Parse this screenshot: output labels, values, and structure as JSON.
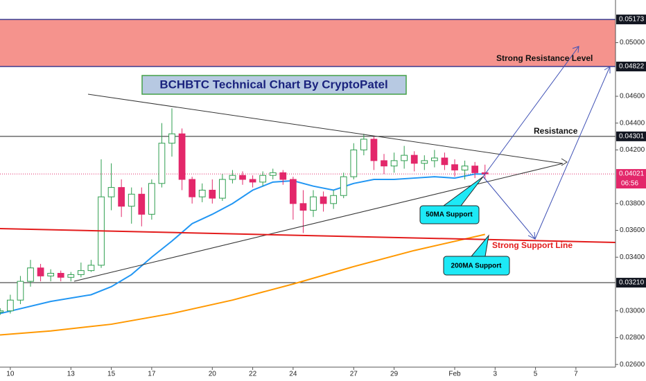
{
  "chart_data": {
    "type": "candlestick",
    "title": "BCHBTC Technical Chart By CryptoPatel",
    "xlim": [
      9.49,
      39.96
    ],
    "ylim": [
      0.0258,
      0.05318
    ],
    "xticks": [
      10,
      13,
      15,
      17,
      20,
      22,
      24,
      27,
      29,
      {
        "value": 32,
        "label": "Feb"
      },
      {
        "value": 34,
        "label": "3"
      },
      {
        "value": 36,
        "label": "5"
      },
      {
        "value": 38,
        "label": "7"
      }
    ],
    "yticks": [
      {
        "value": 0.05,
        "label": "0.05000"
      },
      {
        "value": 0.046,
        "label": "0.04600"
      },
      {
        "value": 0.044,
        "label": "0.04400"
      },
      {
        "value": 0.042,
        "label": "0.04200"
      },
      {
        "value": 0.038,
        "label": "0.03800"
      },
      {
        "value": 0.036,
        "label": "0.03600"
      },
      {
        "value": 0.034,
        "label": "0.03400"
      },
      {
        "value": 0.03,
        "label": "0.03000"
      },
      {
        "value": 0.028,
        "label": "0.02800"
      },
      {
        "value": 0.026,
        "label": "0.02600"
      }
    ],
    "levels": [
      0.05173,
      0.04822,
      0.04301,
      {
        "value": 0.0321,
        "label": "0.03210"
      }
    ],
    "resistance_zone_color": "#f5938d",
    "last_price": 0.04021,
    "countdown": "06:56",
    "up_color": "#2e9e4f",
    "down_color": "#e3276a",
    "candles": {
      "x": [
        9.5,
        10,
        10.5,
        11,
        11.5,
        12,
        12.5,
        13,
        13.5,
        14,
        14.5,
        15,
        15.5,
        16,
        16.5,
        17,
        17.5,
        18,
        18.5,
        19,
        19.5,
        20,
        20.5,
        21,
        21.5,
        22,
        22.5,
        23,
        23.5,
        24,
        24.5,
        25,
        25.5,
        26,
        26.5,
        27,
        27.5,
        28,
        28.5,
        29,
        29.5,
        30,
        30.5,
        31,
        31.5,
        32,
        32.5,
        33,
        33.5
      ],
      "open": [
        0.0299,
        0.03,
        0.0308,
        0.0322,
        0.0332,
        0.0326,
        0.0328,
        0.0325,
        0.0327,
        0.033,
        0.0334,
        0.0385,
        0.0392,
        0.0378,
        0.0387,
        0.0372,
        0.0395,
        0.0425,
        0.0432,
        0.0398,
        0.0385,
        0.039,
        0.0384,
        0.0398,
        0.0401,
        0.0398,
        0.0396,
        0.0401,
        0.0403,
        0.0398,
        0.038,
        0.0375,
        0.0385,
        0.038,
        0.0386,
        0.04,
        0.042,
        0.0428,
        0.0412,
        0.0408,
        0.0412,
        0.0416,
        0.041,
        0.0412,
        0.0414,
        0.0409,
        0.0405,
        0.0408,
        0.0403
      ],
      "high": [
        0.0302,
        0.0312,
        0.0326,
        0.0338,
        0.0335,
        0.0331,
        0.033,
        0.0329,
        0.0336,
        0.0338,
        0.0413,
        0.041,
        0.0398,
        0.0392,
        0.0392,
        0.0398,
        0.044,
        0.0451,
        0.0436,
        0.04,
        0.0395,
        0.0398,
        0.0402,
        0.0405,
        0.0404,
        0.0401,
        0.0404,
        0.0406,
        0.0405,
        0.04,
        0.039,
        0.039,
        0.0389,
        0.039,
        0.0403,
        0.0425,
        0.0432,
        0.043,
        0.0417,
        0.0418,
        0.0423,
        0.0419,
        0.0416,
        0.042,
        0.0418,
        0.0413,
        0.0412,
        0.0411,
        0.0409
      ],
      "low": [
        0.0297,
        0.0298,
        0.0305,
        0.0318,
        0.0322,
        0.0322,
        0.0322,
        0.0322,
        0.0325,
        0.0329,
        0.0332,
        0.0375,
        0.037,
        0.0365,
        0.0363,
        0.0368,
        0.0392,
        0.0415,
        0.039,
        0.038,
        0.0381,
        0.038,
        0.0382,
        0.0395,
        0.0394,
        0.0392,
        0.0393,
        0.0398,
        0.0394,
        0.0368,
        0.0358,
        0.037,
        0.0374,
        0.0376,
        0.0384,
        0.0398,
        0.0416,
        0.0405,
        0.0402,
        0.0403,
        0.0406,
        0.0404,
        0.0405,
        0.0407,
        0.0405,
        0.04,
        0.0398,
        0.0399,
        0.0398
      ],
      "close": [
        0.03,
        0.0308,
        0.0322,
        0.0332,
        0.0326,
        0.0328,
        0.0325,
        0.0327,
        0.033,
        0.0334,
        0.0385,
        0.0392,
        0.0378,
        0.0387,
        0.0372,
        0.0395,
        0.0425,
        0.0432,
        0.0398,
        0.0385,
        0.039,
        0.0384,
        0.0398,
        0.0401,
        0.0398,
        0.0396,
        0.0401,
        0.0403,
        0.0398,
        0.038,
        0.0375,
        0.0385,
        0.038,
        0.0386,
        0.04,
        0.042,
        0.0428,
        0.0412,
        0.0408,
        0.0412,
        0.0416,
        0.041,
        0.0412,
        0.0414,
        0.0409,
        0.0405,
        0.0408,
        0.0403,
        0.04021
      ]
    },
    "series": [
      {
        "name": "50MA",
        "color": "#2196f3",
        "x": [
          9.5,
          12,
          14,
          15,
          16,
          17,
          18,
          19,
          20,
          21,
          22,
          23,
          24,
          25,
          26,
          27,
          28,
          29,
          30,
          31,
          32,
          33,
          33.5
        ],
        "values": [
          0.0298,
          0.0307,
          0.0312,
          0.0318,
          0.0327,
          0.034,
          0.0352,
          0.0365,
          0.0372,
          0.038,
          0.039,
          0.0396,
          0.0397,
          0.0393,
          0.039,
          0.0395,
          0.0398,
          0.0398,
          0.0399,
          0.04,
          0.0399,
          0.0402,
          0.0402
        ]
      },
      {
        "name": "200MA",
        "color": "#ff9800",
        "x": [
          9.49,
          12,
          15,
          18,
          21,
          24,
          27,
          30,
          33.5
        ],
        "values": [
          0.0282,
          0.0285,
          0.029,
          0.0298,
          0.0308,
          0.032,
          0.0333,
          0.0345,
          0.0357
        ]
      }
    ],
    "annotations": {
      "strong_resistance": "Strong Resistance Level",
      "resistance": "Resistance",
      "strong_support": "Strong Support Line",
      "ma50_support": "50MA Support",
      "ma200_support": "200MA Support"
    }
  }
}
